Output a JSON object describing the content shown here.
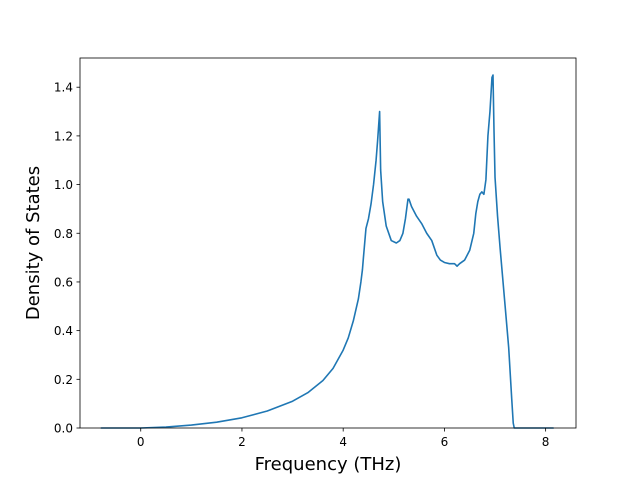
{
  "chart_data": {
    "type": "line",
    "title": "",
    "xlabel": "Frequency (THz)",
    "ylabel": "Density of States",
    "xlim": [
      -1.2,
      8.6
    ],
    "ylim": [
      0.0,
      1.52
    ],
    "xticks": [
      0,
      2,
      4,
      6,
      8
    ],
    "yticks": [
      0.0,
      0.2,
      0.4,
      0.6,
      0.8,
      1.0,
      1.2,
      1.4
    ],
    "xtick_labels": [
      "0",
      "2",
      "4",
      "6",
      "8"
    ],
    "ytick_labels": [
      "0.0",
      "0.2",
      "0.4",
      "0.6",
      "0.8",
      "1.0",
      "1.2",
      "1.4"
    ],
    "grid": false,
    "legend": "none",
    "line_color": "#1f77b4",
    "series": [
      {
        "x": [
          -0.78,
          0.0,
          0.5,
          1.0,
          1.5,
          2.0,
          2.5,
          3.0,
          3.3,
          3.6,
          3.8,
          4.0,
          4.1,
          4.2,
          4.3,
          4.35,
          4.38,
          4.4,
          4.45,
          4.5,
          4.55,
          4.6,
          4.65,
          4.68,
          4.7,
          4.72,
          4.74,
          4.78,
          4.85,
          4.95,
          5.05,
          5.12,
          5.18,
          5.23,
          5.28,
          5.3,
          5.35,
          5.45,
          5.55,
          5.65,
          5.75,
          5.85,
          5.92,
          6.0,
          6.1,
          6.2,
          6.25,
          6.3,
          6.4,
          6.5,
          6.58,
          6.62,
          6.66,
          6.7,
          6.74,
          6.78,
          6.82,
          6.86,
          6.9,
          6.94,
          6.96,
          6.98,
          7.0,
          7.05,
          7.1,
          7.15,
          7.2,
          7.27,
          7.33,
          7.36,
          7.38,
          7.45,
          7.6,
          7.8,
          8.0,
          8.15
        ],
        "y": [
          0.0,
          0.0,
          0.004,
          0.012,
          0.024,
          0.042,
          0.07,
          0.11,
          0.145,
          0.195,
          0.245,
          0.32,
          0.37,
          0.44,
          0.53,
          0.6,
          0.65,
          0.7,
          0.82,
          0.86,
          0.92,
          1.0,
          1.1,
          1.18,
          1.24,
          1.3,
          1.06,
          0.93,
          0.83,
          0.77,
          0.76,
          0.77,
          0.8,
          0.86,
          0.94,
          0.94,
          0.91,
          0.87,
          0.84,
          0.8,
          0.77,
          0.71,
          0.69,
          0.68,
          0.675,
          0.675,
          0.665,
          0.675,
          0.69,
          0.73,
          0.8,
          0.88,
          0.93,
          0.96,
          0.97,
          0.96,
          1.02,
          1.2,
          1.3,
          1.44,
          1.45,
          1.22,
          1.03,
          0.87,
          0.74,
          0.62,
          0.5,
          0.33,
          0.12,
          0.02,
          0.0,
          0.0,
          0.0,
          0.0,
          0.0,
          0.0
        ]
      }
    ]
  }
}
